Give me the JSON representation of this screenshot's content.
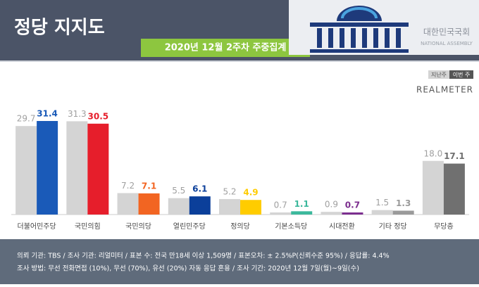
{
  "chart_data": {
    "type": "bar",
    "title": "정당 지지도",
    "subtitle": "2020년 12월 2주차 주중집계",
    "source": "REALMETER",
    "logo_text": "대한민국국회",
    "logo_subtext": "NATIONAL ASSEMBLY",
    "categories": [
      "더불어민주당",
      "국민의힘",
      "국민의당",
      "열린민주당",
      "정의당",
      "기본소득당",
      "시대전환",
      "기타 정당",
      "무당층"
    ],
    "series": [
      {
        "name": "지난주",
        "color": "#d4d4d4",
        "values": [
          29.7,
          31.3,
          7.2,
          5.5,
          5.2,
          0.7,
          0.9,
          1.5,
          18.0
        ],
        "value_labels": [
          "29.7",
          "31.3",
          "7.2",
          "5.5",
          "5.2",
          "0.7",
          "0.9",
          "1.5",
          "18.0"
        ]
      },
      {
        "name": "이번 주",
        "color": "#555555",
        "colors": [
          "#1a5ab8",
          "#e61e2b",
          "#f26522",
          "#0b3f9a",
          "#ffcc00",
          "#3cb89c",
          "#7b2d8e",
          "#9a9a9a",
          "#707070"
        ],
        "values": [
          31.4,
          30.5,
          7.1,
          6.1,
          4.9,
          1.1,
          0.7,
          1.3,
          17.1
        ],
        "value_labels": [
          "31.4",
          "30.5",
          "7.1",
          "6.1",
          "4.9",
          "1.1",
          "0.7",
          "1.3",
          "17.1"
        ]
      }
    ],
    "notes": [
      "의뢰 기관: TBS / 조사 기관: 리얼미터 / 표본 수: 전국 만18세 이상 1,509명 / 표본오차: ± 2.5%P(신뢰수준 95%) / 응답률: 4.4%",
      "조사 방법: 무선 전화면접 (10%), 무선 (70%), 유선 (20%) 자동 응답 혼용 / 조사 기간: 2020년 12월 7일(월)~9일(수)"
    ]
  }
}
